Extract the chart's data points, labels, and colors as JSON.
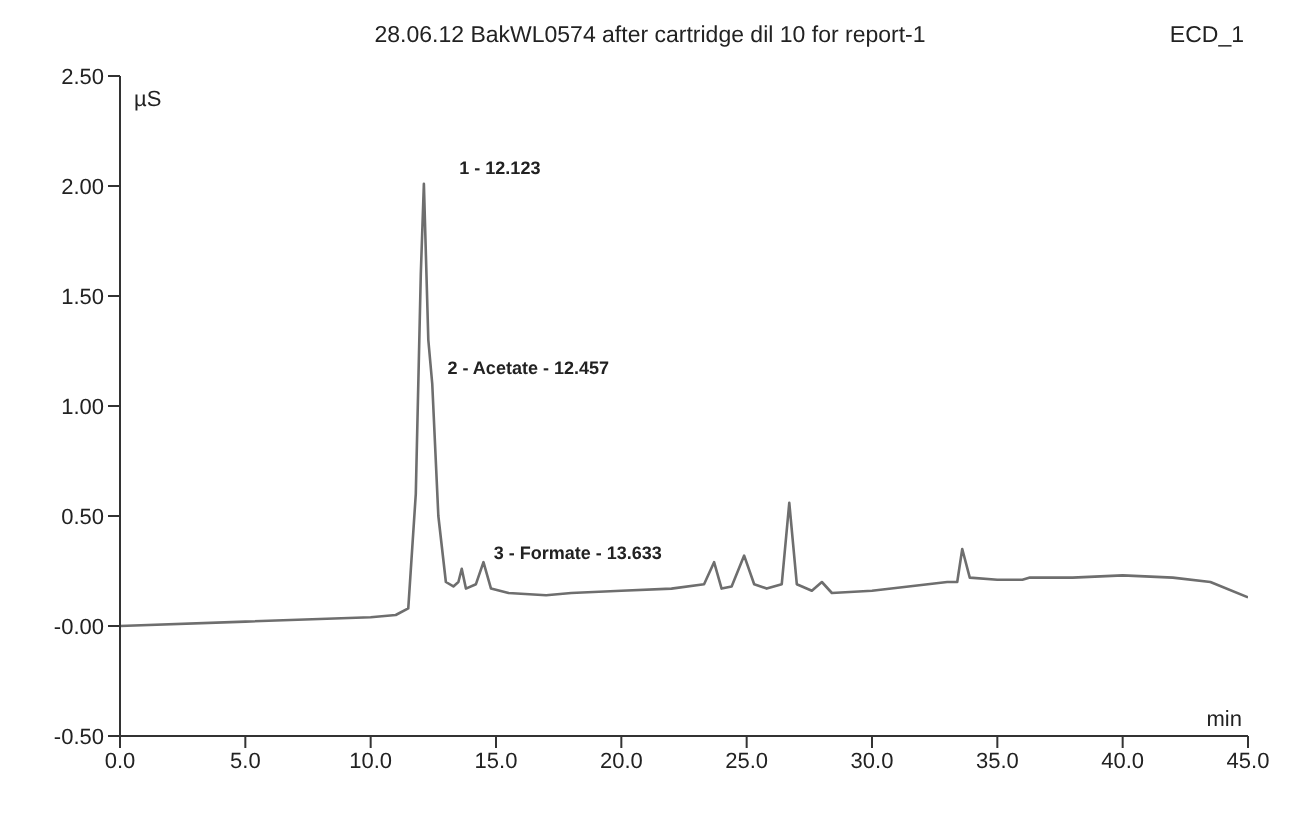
{
  "chart_data": {
    "type": "line",
    "title": "28.06.12 BakWL0574 after cartridge dil 10 for report-1",
    "xlabel": "min",
    "ylabel": "µS",
    "annotations": [
      "ECD_1",
      {
        "text": "1 - 12.123",
        "x": 12.123,
        "y": 2.01
      },
      {
        "text": "2 - Acetate - 12.457",
        "x": 12.457,
        "y": 1.1
      },
      {
        "text": "3 - Formate - 13.633",
        "x": 13.633,
        "y": 0.26
      }
    ],
    "series": [
      {
        "color": "#6e6e6e",
        "x": [
          0,
          5,
          10,
          11,
          11.5,
          11.8,
          12.0,
          12.123,
          12.3,
          12.457,
          12.7,
          13.0,
          13.3,
          13.5,
          13.633,
          13.8,
          14.2,
          14.5,
          14.8,
          15.5,
          17,
          18,
          20,
          22,
          23.3,
          23.7,
          24.0,
          24.4,
          24.9,
          25.3,
          25.8,
          26.4,
          26.7,
          27.0,
          27.6,
          28.0,
          28.4,
          30,
          33,
          33.4,
          33.6,
          33.9,
          35,
          36,
          36.3,
          38,
          40,
          42,
          43.5,
          45
        ],
        "values": [
          0,
          0.02,
          0.04,
          0.05,
          0.08,
          0.6,
          1.6,
          2.01,
          1.3,
          1.1,
          0.5,
          0.2,
          0.18,
          0.2,
          0.26,
          0.17,
          0.19,
          0.29,
          0.17,
          0.15,
          0.14,
          0.15,
          0.16,
          0.17,
          0.19,
          0.29,
          0.17,
          0.18,
          0.32,
          0.19,
          0.17,
          0.19,
          0.56,
          0.19,
          0.16,
          0.2,
          0.15,
          0.16,
          0.2,
          0.2,
          0.35,
          0.22,
          0.21,
          0.21,
          0.22,
          0.22,
          0.23,
          0.22,
          0.2,
          0.13
        ]
      }
    ],
    "xlim": [
      0,
      45
    ],
    "xticks": [
      {
        "value": 0,
        "label": "0.0"
      },
      {
        "value": 5,
        "label": "5.0"
      },
      {
        "value": 10,
        "label": "10.0"
      },
      {
        "value": 15,
        "label": "15.0"
      },
      {
        "value": 20,
        "label": "20.0"
      },
      {
        "value": 25,
        "label": "25.0"
      },
      {
        "value": 30,
        "label": "30.0"
      },
      {
        "value": 35,
        "label": "35.0"
      },
      {
        "value": 40,
        "label": "40.0"
      },
      {
        "value": 45,
        "label": "45.0"
      }
    ],
    "ylim": [
      -0.5,
      2.5
    ],
    "yticks": [
      {
        "value": -0.5,
        "label": "-0.50"
      },
      {
        "value": 0,
        "label": "-0.00"
      },
      {
        "value": 0.5,
        "label": "0.50"
      },
      {
        "value": 1,
        "label": "1.00"
      },
      {
        "value": 1.5,
        "label": "1.50"
      },
      {
        "value": 2,
        "label": "2.00"
      },
      {
        "value": 2.5,
        "label": "2.50"
      }
    ],
    "grid": false,
    "legend": false,
    "marker": "none",
    "line_style": "solid"
  }
}
